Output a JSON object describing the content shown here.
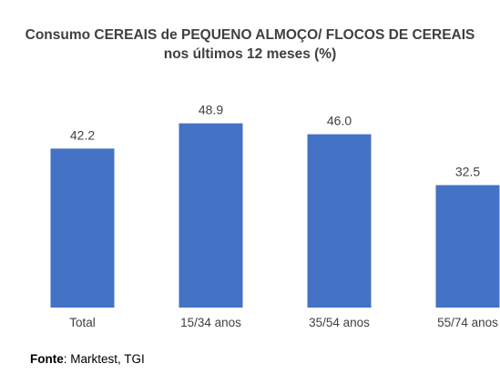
{
  "chart_data": {
    "type": "bar",
    "title": "Consumo CEREAIS de PEQUENO ALMOÇO/ FLOCOS DE CEREAIS",
    "subtitle": "nos últimos 12 meses (%)",
    "categories": [
      "Total",
      "15/34 anos",
      "35/54 anos",
      "55/74 anos"
    ],
    "values": [
      42.2,
      48.9,
      46.0,
      32.5
    ],
    "value_labels": [
      "42.2",
      "48.9",
      "46.0",
      "32.5"
    ],
    "xlabel": "",
    "ylabel": "",
    "ylim": [
      0,
      50
    ],
    "grid": false,
    "bar_color": "#4472C4"
  },
  "source": {
    "label": "Fonte",
    "text": ": Marktest, TGI"
  }
}
